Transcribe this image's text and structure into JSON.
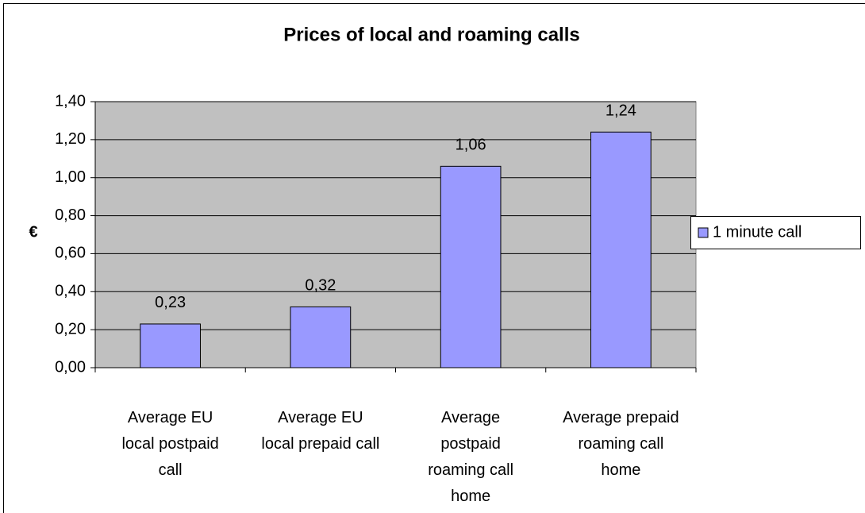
{
  "chart_data": {
    "type": "bar",
    "title": "Prices of local and roaming calls",
    "y_label": "€",
    "categories": [
      "Average EU local postpaid call",
      "Average EU local prepaid call",
      "Average postpaid roaming call home",
      "Average prepaid roaming call home"
    ],
    "series": [
      {
        "name": "1 minute call",
        "color": "#9999ff",
        "values": [
          0.23,
          0.32,
          1.06,
          1.24
        ],
        "value_labels": [
          "0,23",
          "0,32",
          "1,06",
          "1,24"
        ]
      }
    ],
    "ylim": [
      0,
      1.4
    ],
    "yticks": [
      {
        "value": 0,
        "label": "0,00"
      },
      {
        "value": 0.2,
        "label": "0,20"
      },
      {
        "value": 0.4,
        "label": "0,40"
      },
      {
        "value": 0.6,
        "label": "0,60"
      },
      {
        "value": 0.8,
        "label": "0,80"
      },
      {
        "value": 1.0,
        "label": "1,00"
      },
      {
        "value": 1.2,
        "label": "1,20"
      },
      {
        "value": 1.4,
        "label": "1,40"
      }
    ],
    "grid": true,
    "legend": "right",
    "plot_background": "#c0c0c0"
  }
}
